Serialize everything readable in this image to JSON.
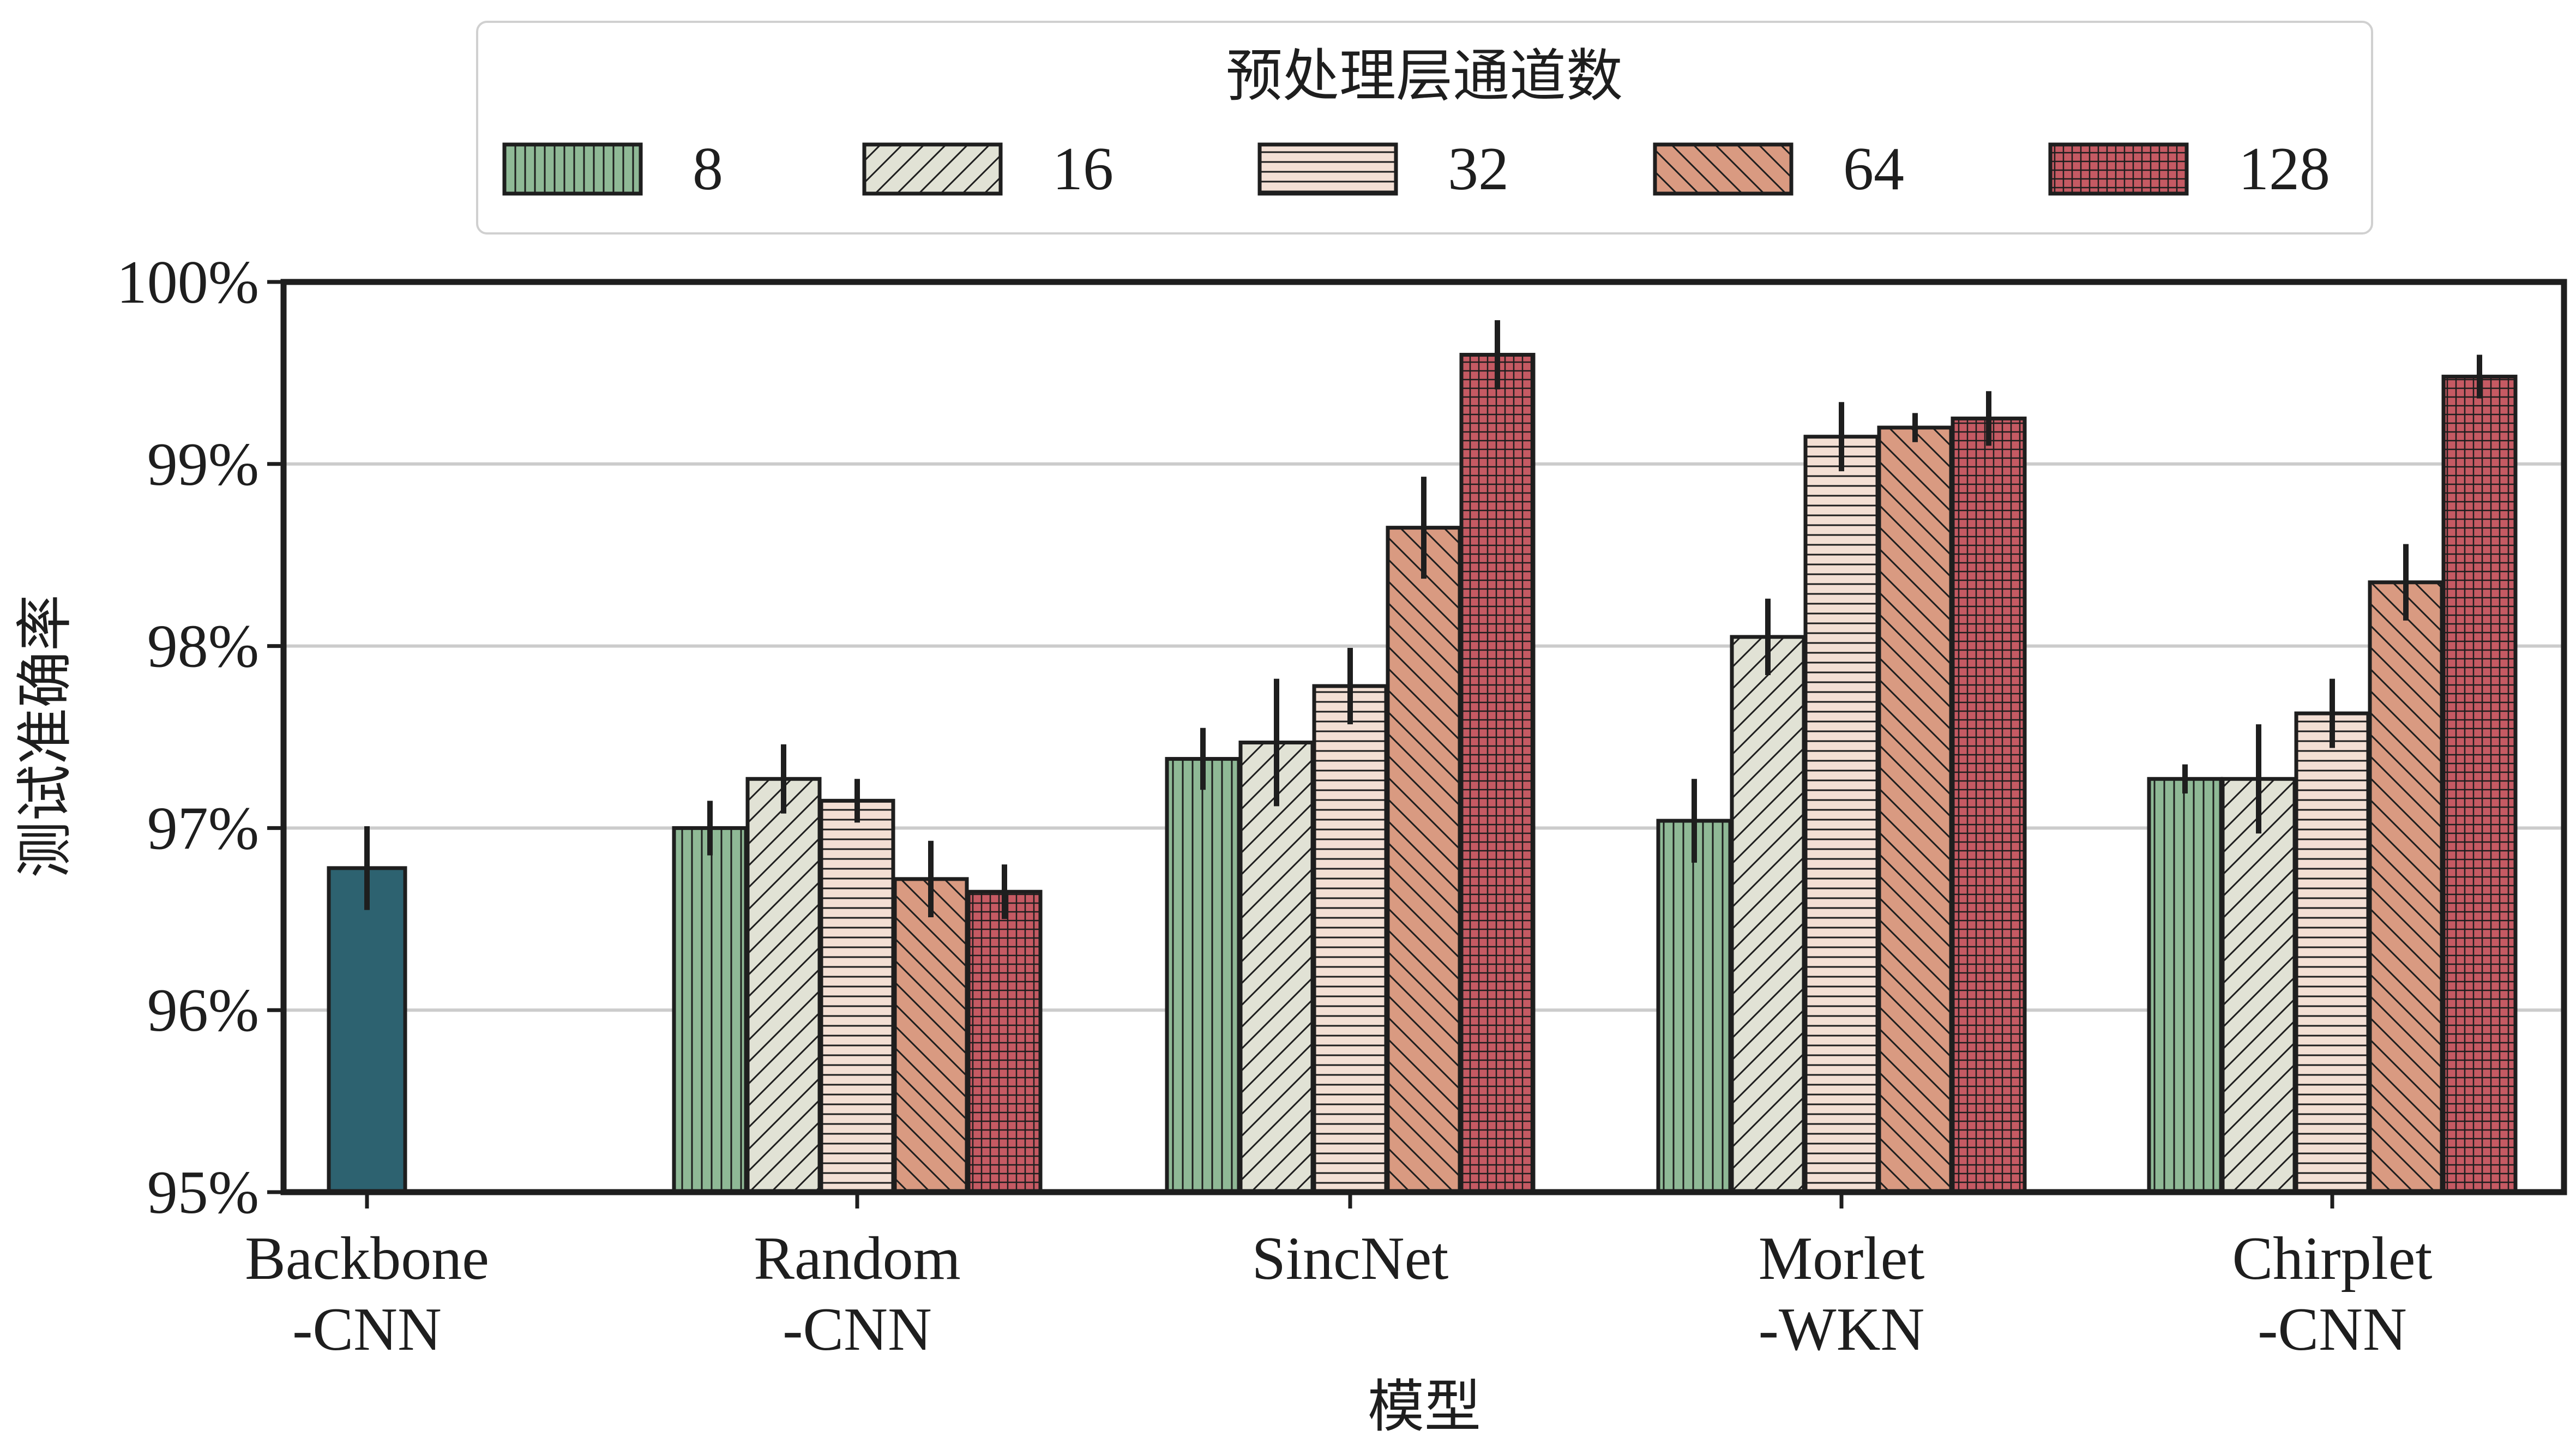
{
  "chart_data": {
    "type": "bar",
    "xlabel": "模型",
    "ylabel": "测试准确率",
    "ylim": [
      95,
      100
    ],
    "y_ticks": [
      95,
      96,
      97,
      98,
      99,
      100
    ],
    "y_tick_labels": [
      "95%",
      "96%",
      "97%",
      "98%",
      "99%",
      "100%"
    ],
    "grid": "horizontal",
    "legend_title": "预处理层通道数",
    "legend_placement": "top-center",
    "categories": [
      {
        "line1": "Backbone",
        "line2": "-CNN"
      },
      {
        "line1": "Random",
        "line2": "-CNN"
      },
      {
        "line1": "SincNet",
        "line2": ""
      },
      {
        "line1": "Morlet",
        "line2": "-WKN"
      },
      {
        "line1": "Chirplet",
        "line2": "-CNN"
      }
    ],
    "baseline": {
      "category_index": 0,
      "value": 96.78,
      "error": 0.23,
      "color": "#2d6270"
    },
    "series": [
      {
        "name": "8",
        "color": "#8fb996",
        "hatch": "vertical",
        "values": [
          null,
          97.0,
          97.38,
          97.04,
          97.27
        ],
        "errors": [
          null,
          0.15,
          0.17,
          0.23,
          0.08
        ]
      },
      {
        "name": "16",
        "color": "#e1e2d5",
        "hatch": "diagonal-up",
        "values": [
          null,
          97.27,
          97.47,
          98.05,
          97.27
        ],
        "errors": [
          null,
          0.19,
          0.35,
          0.21,
          0.3
        ]
      },
      {
        "name": "32",
        "color": "#f3dfd4",
        "hatch": "horizontal",
        "values": [
          null,
          97.15,
          97.78,
          99.15,
          97.63
        ],
        "errors": [
          null,
          0.12,
          0.21,
          0.19,
          0.19
        ]
      },
      {
        "name": "64",
        "color": "#d99a81",
        "hatch": "diagonal-down",
        "values": [
          null,
          96.72,
          98.65,
          99.2,
          98.35
        ],
        "errors": [
          null,
          0.21,
          0.28,
          0.08,
          0.21
        ]
      },
      {
        "name": "128",
        "color": "#c55a63",
        "hatch": "grid",
        "values": [
          null,
          96.65,
          99.6,
          99.25,
          99.48
        ],
        "errors": [
          null,
          0.15,
          0.19,
          0.15,
          0.12
        ]
      }
    ]
  }
}
